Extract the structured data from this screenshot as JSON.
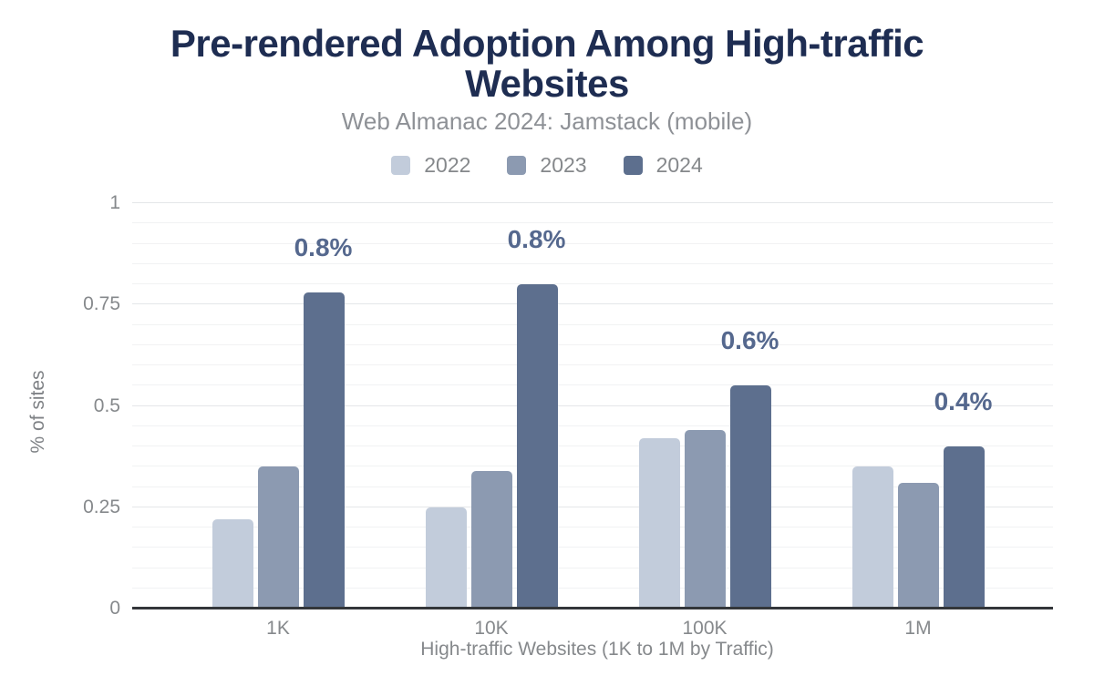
{
  "title": {
    "line1": "Pre-rendered Adoption Among High-traffic",
    "line2": "Websites"
  },
  "subtitle": "Web Almanac 2024: Jamstack (mobile)",
  "legend": [
    {
      "label": "2022",
      "color": "#c2ccdb"
    },
    {
      "label": "2023",
      "color": "#8c9ab1"
    },
    {
      "label": "2024",
      "color": "#5d6f8e"
    }
  ],
  "colors": {
    "background": "#ffffff",
    "title_text": "#1e2d52",
    "subtitle_text": "#8e9196",
    "axis_text": "#86898c",
    "grid_minor": "#f1f2f3",
    "grid_major": "#e4e6e9",
    "axis_line": "#33363a",
    "bar_label_text": "#55688e"
  },
  "chart_data": {
    "type": "bar",
    "title": "Pre-rendered Adoption Among High-traffic Websites",
    "subtitle": "Web Almanac 2024: Jamstack (mobile)",
    "categories": [
      "1K",
      "10K",
      "100K",
      "1M"
    ],
    "series": [
      {
        "name": "2022",
        "color": "#c2ccdb",
        "values": [
          0.22,
          0.25,
          0.42,
          0.35
        ]
      },
      {
        "name": "2023",
        "color": "#8c9ab1",
        "values": [
          0.35,
          0.34,
          0.44,
          0.31
        ]
      },
      {
        "name": "2024",
        "color": "#5d6f8e",
        "values": [
          0.78,
          0.8,
          0.55,
          0.4
        ]
      }
    ],
    "data_labels": {
      "series": "2024",
      "values": [
        "0.8%",
        "0.8%",
        "0.6%",
        "0.4%"
      ]
    },
    "xlabel": "High-traffic Websites (1K to 1M by Traffic)",
    "ylabel": "% of sites",
    "ylim": [
      0,
      1
    ],
    "yticks": [
      0,
      0.25,
      0.5,
      0.75,
      1
    ],
    "ytick_labels": [
      "0",
      "0.25",
      "0.5",
      "0.75",
      "1"
    ],
    "minor_grid_step": 0.05,
    "grid": true,
    "legend_position": "top"
  }
}
